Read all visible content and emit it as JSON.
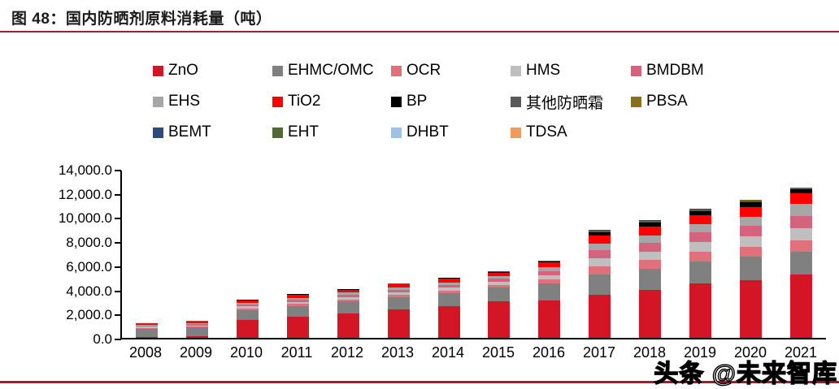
{
  "figure": {
    "title": "图 48：国内防晒剂原料消耗量（吨）"
  },
  "watermark": {
    "text": "头条 @未来智库"
  },
  "colors": {
    "rule_red": "#a6192e",
    "axis_black": "#000000",
    "background": "#ffffff"
  },
  "chart_data": {
    "type": "bar",
    "stacked": true,
    "grid": false,
    "legend_position": "top",
    "title": "图 48：国内防晒剂原料消耗量（吨）",
    "xlabel": "",
    "ylabel": "",
    "ylim": [
      0,
      14000
    ],
    "yticks": [
      {
        "value": 0,
        "label": "0.0"
      },
      {
        "value": 2000,
        "label": "2,000.0"
      },
      {
        "value": 4000,
        "label": "4,000.0"
      },
      {
        "value": 6000,
        "label": "6,000.0"
      },
      {
        "value": 8000,
        "label": "8,000.0"
      },
      {
        "value": 10000,
        "label": "10,000.0"
      },
      {
        "value": 12000,
        "label": "12,000.0"
      },
      {
        "value": 14000,
        "label": "14,000.0"
      }
    ],
    "categories": [
      "2008",
      "2009",
      "2010",
      "2011",
      "2012",
      "2013",
      "2014",
      "2015",
      "2016",
      "2017",
      "2018",
      "2019",
      "2020",
      "2021"
    ],
    "series": [
      {
        "name": "ZnO",
        "color": "#d41525",
        "values": [
          100,
          150,
          1450,
          1750,
          2050,
          2350,
          2650,
          3050,
          3100,
          3580,
          3960,
          4480,
          4750,
          5260
        ]
      },
      {
        "name": "EHMC/OMC",
        "color": "#808080",
        "values": [
          650,
          700,
          850,
          900,
          950,
          1000,
          1050,
          1100,
          1400,
          1680,
          1750,
          1850,
          1950,
          1900
        ]
      },
      {
        "name": "OCR",
        "color": "#e0707c",
        "values": [
          80,
          90,
          150,
          170,
          190,
          210,
          230,
          250,
          350,
          670,
          720,
          800,
          850,
          900
        ]
      },
      {
        "name": "HMS",
        "color": "#bfbfbf",
        "values": [
          80,
          90,
          150,
          170,
          190,
          210,
          230,
          250,
          350,
          670,
          720,
          790,
          870,
          1010
        ]
      },
      {
        "name": "BMDBM",
        "color": "#d4637e",
        "values": [
          80,
          90,
          150,
          170,
          190,
          210,
          230,
          250,
          350,
          670,
          740,
          800,
          870,
          1010
        ]
      },
      {
        "name": "EHS",
        "color": "#a6a6a6",
        "values": [
          80,
          90,
          150,
          160,
          170,
          190,
          220,
          230,
          300,
          560,
          620,
          680,
          760,
          1010
        ]
      },
      {
        "name": "TiO2",
        "color": "#ff0000",
        "values": [
          120,
          130,
          200,
          230,
          230,
          250,
          290,
          270,
          400,
          630,
          700,
          750,
          820,
          900
        ]
      },
      {
        "name": "BP",
        "color": "#000000",
        "values": [
          30,
          30,
          50,
          60,
          50,
          50,
          70,
          70,
          100,
          310,
          350,
          380,
          400,
          340
        ]
      },
      {
        "name": "其他防晒霜",
        "color": "#595959",
        "values": [
          15,
          15,
          25,
          20,
          15,
          15,
          15,
          15,
          25,
          100,
          130,
          90,
          100,
          60
        ]
      },
      {
        "name": "PBSA",
        "color": "#87701b",
        "values": [
          5,
          5,
          10,
          8,
          6,
          6,
          6,
          6,
          10,
          40,
          40,
          40,
          50,
          40
        ]
      },
      {
        "name": "BEMT",
        "color": "#2f4b7c",
        "values": [
          4,
          4,
          6,
          5,
          4,
          4,
          4,
          4,
          6,
          20,
          30,
          20,
          15,
          10
        ]
      },
      {
        "name": "EHT",
        "color": "#4f6b33",
        "values": [
          3,
          3,
          4,
          3,
          3,
          3,
          3,
          3,
          5,
          10,
          20,
          10,
          10,
          8
        ]
      },
      {
        "name": "DHBT",
        "color": "#9cc2e5",
        "values": [
          2,
          2,
          3,
          2,
          1,
          1,
          1,
          1,
          2,
          5,
          10,
          5,
          3,
          7
        ]
      },
      {
        "name": "TDSA",
        "color": "#f19b5c",
        "values": [
          1,
          1,
          2,
          2,
          1,
          1,
          1,
          1,
          2,
          5,
          10,
          5,
          2,
          5
        ]
      }
    ]
  }
}
